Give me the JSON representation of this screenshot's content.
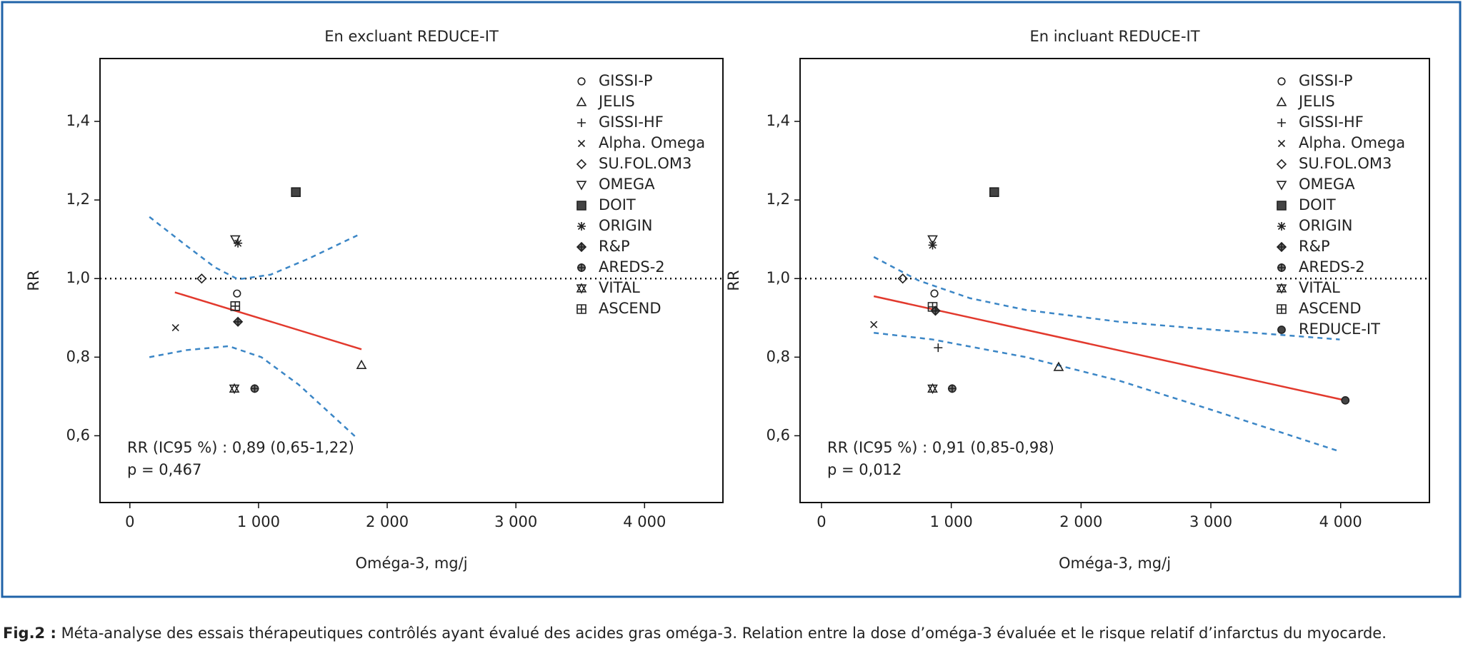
{
  "chart_data": [
    {
      "type": "scatter",
      "title": "En excluant REDUCE-IT",
      "xlabel": "Oméga-3, mg/j",
      "ylabel": "RR",
      "xlim": [
        -232,
        4609
      ],
      "ylim": [
        0.43,
        1.56
      ],
      "xticks": [
        0,
        {
          "value": 1000,
          "label": "1 000"
        },
        {
          "value": 2000,
          "label": "2 000"
        },
        {
          "value": 3000,
          "label": "3 000"
        },
        {
          "value": 4000,
          "label": "4 000"
        }
      ],
      "yticks": [
        {
          "value": 0.6,
          "label": "0,6"
        },
        {
          "value": 0.8,
          "label": "0,8"
        },
        {
          "value": 1.0,
          "label": "1,0"
        },
        {
          "value": 1.2,
          "label": "1,2"
        },
        {
          "value": 1.4,
          "label": "1,4"
        }
      ],
      "hline": 1.0,
      "series": [
        {
          "name": "GISSI-P",
          "marker": "circle",
          "x": [
            833
          ],
          "y": [
            0.962
          ]
        },
        {
          "name": "JELIS",
          "marker": "triangle",
          "x": [
            1800
          ],
          "y": [
            0.78
          ]
        },
        {
          "name": "GISSI-HF",
          "marker": "plus",
          "x": [
            null
          ],
          "y": [
            null
          ]
        },
        {
          "name": "Alpha. Omega",
          "marker": "x",
          "x": [
            355
          ],
          "y": [
            0.875
          ]
        },
        {
          "name": "SU.FOL.OM3",
          "marker": "diamond",
          "x": [
            558
          ],
          "y": [
            1.0
          ]
        },
        {
          "name": "OMEGA",
          "marker": "triangle-down",
          "x": [
            819
          ],
          "y": [
            1.1
          ]
        },
        {
          "name": "DOIT",
          "marker": "square-filled",
          "x": [
            1290
          ],
          "y": [
            1.22
          ]
        },
        {
          "name": "ORIGIN",
          "marker": "asterisk",
          "x": [
            840
          ],
          "y": [
            1.09
          ]
        },
        {
          "name": "R&P",
          "marker": "diamond-filled",
          "x": [
            840
          ],
          "y": [
            0.89
          ]
        },
        {
          "name": "AREDS-2",
          "marker": "circle-plus",
          "x": [
            970
          ],
          "y": [
            0.72
          ]
        },
        {
          "name": "VITAL",
          "marker": "star6",
          "x": [
            812
          ],
          "y": [
            0.72
          ]
        },
        {
          "name": "ASCEND",
          "marker": "square-plus",
          "x": [
            819
          ],
          "y": [
            0.93
          ]
        }
      ],
      "fit": {
        "color": "#e2392d",
        "x": [
          350,
          1800
        ],
        "y": [
          0.965,
          0.82
        ]
      },
      "ci_upper": {
        "color": "#3b86c6",
        "x": [
          152,
          442,
          659,
          841,
          1094,
          1384,
          1768
        ],
        "y": [
          1.157,
          1.083,
          1.029,
          0.998,
          1.01,
          1.05,
          1.11
        ]
      },
      "ci_lower": {
        "color": "#3b86c6",
        "x": [
          152,
          442,
          768,
          1022,
          1312,
          1529,
          1768
        ],
        "y": [
          0.8,
          0.818,
          0.828,
          0.8,
          0.73,
          0.665,
          0.593
        ]
      },
      "annotations": [
        "RR (IC95 %) : 0,89 (0,65-1,22)",
        "p = 0,467"
      ]
    },
    {
      "type": "scatter",
      "title": "En incluant REDUCE-IT",
      "xlabel": "Oméga-3, mg/j",
      "ylabel": "RR",
      "xlim": [
        -165,
        4684
      ],
      "ylim": [
        0.43,
        1.56
      ],
      "xticks": [
        0,
        {
          "value": 1000,
          "label": "1 000"
        },
        {
          "value": 2000,
          "label": "2 000"
        },
        {
          "value": 3000,
          "label": "3 000"
        },
        {
          "value": 4000,
          "label": "4 000"
        }
      ],
      "yticks": [
        {
          "value": 0.6,
          "label": "0,6"
        },
        {
          "value": 0.8,
          "label": "0,8"
        },
        {
          "value": 1.0,
          "label": "1,0"
        },
        {
          "value": 1.2,
          "label": "1,2"
        },
        {
          "value": 1.4,
          "label": "1,4"
        }
      ],
      "hline": 1.0,
      "series": [
        {
          "name": "GISSI-P",
          "marker": "circle",
          "x": [
            870
          ],
          "y": [
            0.962
          ]
        },
        {
          "name": "JELIS",
          "marker": "triangle",
          "x": [
            1827
          ],
          "y": [
            0.775
          ]
        },
        {
          "name": "GISSI-HF",
          "marker": "plus",
          "x": [
            899
          ],
          "y": [
            0.824
          ]
        },
        {
          "name": "Alpha. Omega",
          "marker": "x",
          "x": [
            403
          ],
          "y": [
            0.883
          ]
        },
        {
          "name": "SU.FOL.OM3",
          "marker": "diamond",
          "x": [
            626
          ],
          "y": [
            1.0
          ]
        },
        {
          "name": "OMEGA",
          "marker": "triangle-down",
          "x": [
            856
          ],
          "y": [
            1.1
          ]
        },
        {
          "name": "DOIT",
          "marker": "square-filled",
          "x": [
            1331
          ],
          "y": [
            1.22
          ]
        },
        {
          "name": "ORIGIN",
          "marker": "asterisk",
          "x": [
            856
          ],
          "y": [
            1.085
          ]
        },
        {
          "name": "R&P",
          "marker": "diamond-filled",
          "x": [
            878
          ],
          "y": [
            0.918
          ]
        },
        {
          "name": "AREDS-2",
          "marker": "circle-plus",
          "x": [
            1007
          ],
          "y": [
            0.72
          ]
        },
        {
          "name": "VITAL",
          "marker": "star6",
          "x": [
            856
          ],
          "y": [
            0.72
          ]
        },
        {
          "name": "ASCEND",
          "marker": "square-plus",
          "x": [
            856
          ],
          "y": [
            0.928
          ]
        },
        {
          "name": "REDUCE-IT",
          "marker": "circle-filled",
          "x": [
            4036
          ],
          "y": [
            0.69
          ]
        }
      ],
      "fit": {
        "color": "#e2392d",
        "x": [
          403,
          4036
        ],
        "y": [
          0.955,
          0.69
        ]
      },
      "ci_upper": {
        "color": "#3b86c6",
        "x": [
          403,
          748,
          1144,
          1576,
          2295,
          3014,
          3993
        ],
        "y": [
          1.055,
          0.995,
          0.95,
          0.92,
          0.89,
          0.87,
          0.845
        ]
      },
      "ci_lower": {
        "color": "#3b86c6",
        "x": [
          403,
          856,
          1576,
          2295,
          3014,
          3993
        ],
        "y": [
          0.862,
          0.845,
          0.8,
          0.74,
          0.665,
          0.56
        ]
      },
      "annotations": [
        "RR (IC95 %) : 0,91 (0,85-0,98)",
        "p = 0,012"
      ]
    }
  ],
  "caption": {
    "label": "Fig.2 :",
    "text": "Méta-analyse des essais thérapeutiques contrôlés ayant évalué des acides gras oméga-3. Relation entre la dose d’oméga-3 évaluée et le risque relatif d’infarctus du myocarde."
  }
}
